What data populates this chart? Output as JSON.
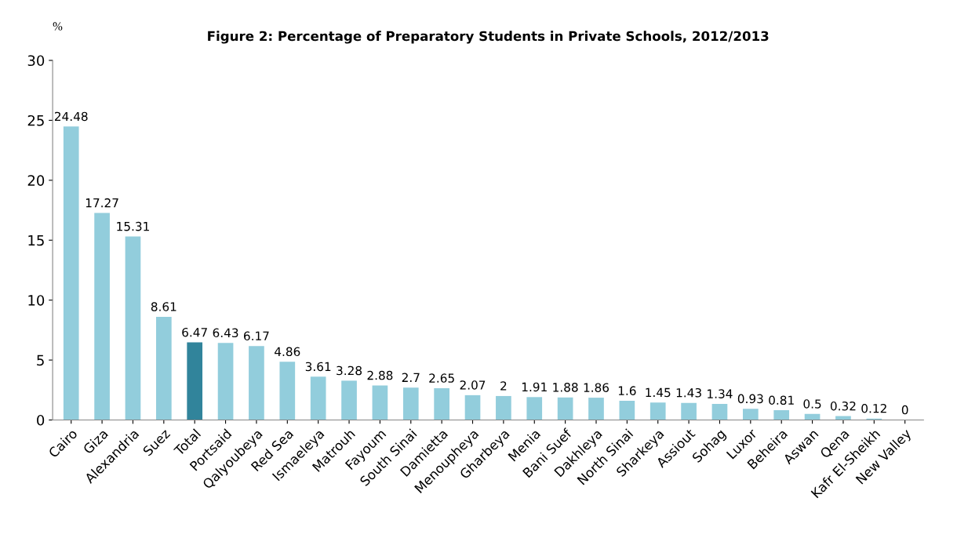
{
  "chart_data": {
    "type": "bar",
    "title": "Figure 2: Percentage of Preparatory Students in Private Schools, 2012/2013",
    "ylabel": "%",
    "categories": [
      "Cairo",
      "Giza",
      "Alexandria",
      "Suez",
      "Total",
      "Portsaid",
      "Qalyoubeya",
      "Red Sea",
      "Ismaeleya",
      "Matrouh",
      "Fayoum",
      "South Sinai",
      "Damietta",
      "Menoupheya",
      "Gharbeya",
      "Menia",
      "Bani Suef",
      "Dakhleya",
      "North Sinai",
      "Sharkeya",
      "Assiout",
      "Sohag",
      "Luxor",
      "Beheira",
      "Aswan",
      "Qena",
      "Kafr El-Sheikh",
      "New Valley"
    ],
    "values": [
      24.48,
      17.27,
      15.31,
      8.61,
      6.47,
      6.43,
      6.17,
      4.86,
      3.61,
      3.28,
      2.88,
      2.7,
      2.65,
      2.07,
      2,
      1.91,
      1.88,
      1.86,
      1.6,
      1.45,
      1.43,
      1.34,
      0.93,
      0.81,
      0.5,
      0.32,
      0.12,
      0
    ],
    "colors": [
      "#92cddc",
      "#92cddc",
      "#92cddc",
      "#92cddc",
      "#31849b",
      "#92cddc",
      "#92cddc",
      "#92cddc",
      "#92cddc",
      "#92cddc",
      "#92cddc",
      "#92cddc",
      "#92cddc",
      "#92cddc",
      "#92cddc",
      "#92cddc",
      "#92cddc",
      "#92cddc",
      "#92cddc",
      "#92cddc",
      "#92cddc",
      "#92cddc",
      "#92cddc",
      "#92cddc",
      "#92cddc",
      "#92cddc",
      "#92cddc",
      "#92cddc"
    ],
    "ylim": [
      0,
      30
    ],
    "yticks": [
      0,
      5,
      10,
      15,
      20,
      25,
      30
    ],
    "data_labels": true,
    "grid": false,
    "legend": false
  }
}
